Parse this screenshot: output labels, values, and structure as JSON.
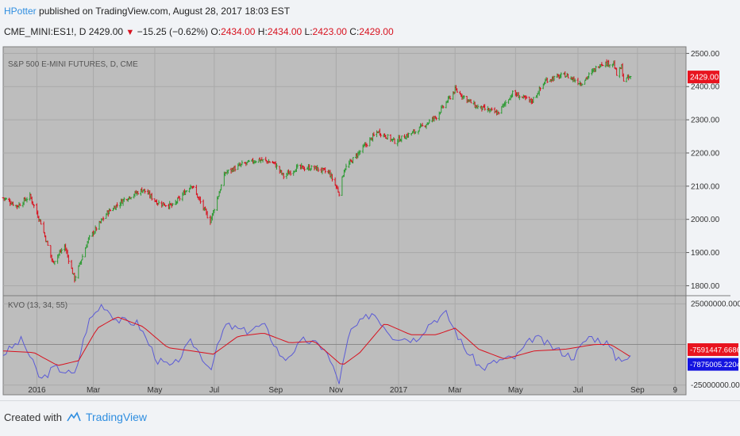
{
  "header": {
    "user": "HPotter",
    "published_text": " published on TradingView.com, August 28, 2017 18:03 EST",
    "symbol": "CME_MINI:ES1!, D ",
    "last": "2429.00",
    "change": "−15.25 (−0.62%)",
    "o_label": " O:",
    "o_value": "2434.00",
    "h_label": " H:",
    "h_value": "2434.00",
    "l_label": " L:",
    "l_value": "2423.00",
    "c_label": " C:",
    "c_value": "2429.00"
  },
  "footer": {
    "created": "Created with",
    "brand": "TradingView"
  },
  "colors": {
    "up": "#2e9b34",
    "down": "#d8121f",
    "kvo": "#5b5bd6",
    "signal": "#d8121f",
    "pane": "#bdbdbd",
    "grid": "#a9a9a9"
  },
  "chart_data": [
    {
      "type": "ohlc",
      "title": "S&P 500 E-MINI FUTURES, D, CME",
      "ylim": [
        1770,
        2520
      ],
      "y_ticks": [
        "2500.00",
        "2400.00",
        "2300.00",
        "2200.00",
        "2100.00",
        "2000.00",
        "1900.00",
        "1800.00"
      ],
      "y_tick_values": [
        2500,
        2400,
        2300,
        2200,
        2100,
        2000,
        1900,
        1800
      ],
      "last_price_label": "2429.00",
      "x_labels": [
        "2016",
        "Mar",
        "May",
        "Jul",
        "Sep",
        "Nov",
        "2017",
        "Mar",
        "May",
        "Jul",
        "Sep",
        "9"
      ],
      "x_label_dates": [
        "2016-01-04",
        "2016-03-01",
        "2016-05-02",
        "2016-07-01",
        "2016-09-01",
        "2016-11-01",
        "2017-01-03",
        "2017-03-01",
        "2017-05-01",
        "2017-07-03",
        "2017-09-01",
        "2017-10-09"
      ],
      "x_range": [
        "2015-12-01",
        "2017-10-20"
      ],
      "close_path": [
        [
          "2015-12-01",
          2065
        ],
        [
          "2015-12-15",
          2040
        ],
        [
          "2015-12-28",
          2070
        ],
        [
          "2016-01-08",
          1990
        ],
        [
          "2016-01-20",
          1870
        ],
        [
          "2016-02-01",
          1920
        ],
        [
          "2016-02-11",
          1820
        ],
        [
          "2016-02-25",
          1940
        ],
        [
          "2016-03-15",
          2020
        ],
        [
          "2016-04-01",
          2060
        ],
        [
          "2016-04-20",
          2090
        ],
        [
          "2016-05-05",
          2050
        ],
        [
          "2016-05-20",
          2040
        ],
        [
          "2016-06-08",
          2105
        ],
        [
          "2016-06-24",
          2010
        ],
        [
          "2016-06-27",
          1995
        ],
        [
          "2016-07-12",
          2140
        ],
        [
          "2016-07-29",
          2165
        ],
        [
          "2016-08-15",
          2180
        ],
        [
          "2016-08-30",
          2170
        ],
        [
          "2016-09-09",
          2130
        ],
        [
          "2016-09-22",
          2155
        ],
        [
          "2016-10-10",
          2155
        ],
        [
          "2016-10-25",
          2140
        ],
        [
          "2016-11-04",
          2080
        ],
        [
          "2016-11-09",
          2150
        ],
        [
          "2016-11-25",
          2205
        ],
        [
          "2016-12-13",
          2265
        ],
        [
          "2016-12-30",
          2235
        ],
        [
          "2017-01-20",
          2265
        ],
        [
          "2017-02-10",
          2310
        ],
        [
          "2017-03-01",
          2390
        ],
        [
          "2017-03-22",
          2340
        ],
        [
          "2017-04-13",
          2320
        ],
        [
          "2017-04-28",
          2380
        ],
        [
          "2017-05-17",
          2355
        ],
        [
          "2017-06-01",
          2420
        ],
        [
          "2017-06-20",
          2435
        ],
        [
          "2017-07-06",
          2410
        ],
        [
          "2017-07-26",
          2470
        ],
        [
          "2017-08-08",
          2470
        ],
        [
          "2017-08-11",
          2435
        ],
        [
          "2017-08-16",
          2460
        ],
        [
          "2017-08-18",
          2418
        ],
        [
          "2017-08-25",
          2429
        ]
      ]
    },
    {
      "type": "line",
      "title": "KVO (13, 34, 55)",
      "ylim": [
        -31000000,
        30000000
      ],
      "y_ticks": [
        "25000000.0000",
        "-25000000.0000"
      ],
      "y_tick_values": [
        25000000,
        -25000000
      ],
      "value_labels": [
        "-7591447.6686",
        "-7875005.2204"
      ],
      "series": [
        {
          "name": "KVO",
          "points": [
            [
              "2015-12-01",
              -6000000
            ],
            [
              "2015-12-20",
              3000000
            ],
            [
              "2016-01-08",
              -22000000
            ],
            [
              "2016-01-22",
              -14000000
            ],
            [
              "2016-02-11",
              -19000000
            ],
            [
              "2016-02-25",
              14000000
            ],
            [
              "2016-03-10",
              25000000
            ],
            [
              "2016-03-25",
              15000000
            ],
            [
              "2016-04-15",
              13000000
            ],
            [
              "2016-05-05",
              -10000000
            ],
            [
              "2016-05-20",
              -14000000
            ],
            [
              "2016-06-08",
              2000000
            ],
            [
              "2016-06-27",
              -15000000
            ],
            [
              "2016-07-12",
              12000000
            ],
            [
              "2016-08-01",
              8000000
            ],
            [
              "2016-08-20",
              12000000
            ],
            [
              "2016-09-09",
              -10000000
            ],
            [
              "2016-09-30",
              3000000
            ],
            [
              "2016-10-20",
              -2000000
            ],
            [
              "2016-11-04",
              -23000000
            ],
            [
              "2016-11-15",
              8000000
            ],
            [
              "2016-12-08",
              20000000
            ],
            [
              "2016-12-28",
              5000000
            ],
            [
              "2017-01-20",
              3000000
            ],
            [
              "2017-02-05",
              14000000
            ],
            [
              "2017-02-20",
              19000000
            ],
            [
              "2017-03-10",
              -2000000
            ],
            [
              "2017-03-28",
              -15000000
            ],
            [
              "2017-04-13",
              -10000000
            ],
            [
              "2017-05-01",
              -8000000
            ],
            [
              "2017-05-20",
              5000000
            ],
            [
              "2017-06-08",
              -2000000
            ],
            [
              "2017-06-28",
              -8000000
            ],
            [
              "2017-07-14",
              5000000
            ],
            [
              "2017-08-01",
              1000000
            ],
            [
              "2017-08-10",
              -8000000
            ],
            [
              "2017-08-25",
              -8500000
            ]
          ]
        },
        {
          "name": "Signal",
          "points": [
            [
              "2015-12-01",
              -4000000
            ],
            [
              "2016-01-01",
              -5000000
            ],
            [
              "2016-01-25",
              -13000000
            ],
            [
              "2016-02-15",
              -10000000
            ],
            [
              "2016-03-05",
              10000000
            ],
            [
              "2016-03-25",
              17000000
            ],
            [
              "2016-04-20",
              11000000
            ],
            [
              "2016-05-15",
              -2000000
            ],
            [
              "2016-06-08",
              -4000000
            ],
            [
              "2016-06-30",
              -6000000
            ],
            [
              "2016-07-25",
              5000000
            ],
            [
              "2016-08-20",
              7000000
            ],
            [
              "2016-09-15",
              1000000
            ],
            [
              "2016-10-10",
              2000000
            ],
            [
              "2016-11-07",
              -13000000
            ],
            [
              "2016-11-25",
              -5000000
            ],
            [
              "2016-12-20",
              13000000
            ],
            [
              "2017-01-15",
              6000000
            ],
            [
              "2017-02-10",
              6000000
            ],
            [
              "2017-03-01",
              10000000
            ],
            [
              "2017-03-25",
              -3000000
            ],
            [
              "2017-04-20",
              -9000000
            ],
            [
              "2017-05-20",
              -4000000
            ],
            [
              "2017-06-20",
              -3000000
            ],
            [
              "2017-07-20",
              0
            ],
            [
              "2017-08-05",
              0
            ],
            [
              "2017-08-25",
              -7600000
            ]
          ]
        }
      ]
    }
  ]
}
